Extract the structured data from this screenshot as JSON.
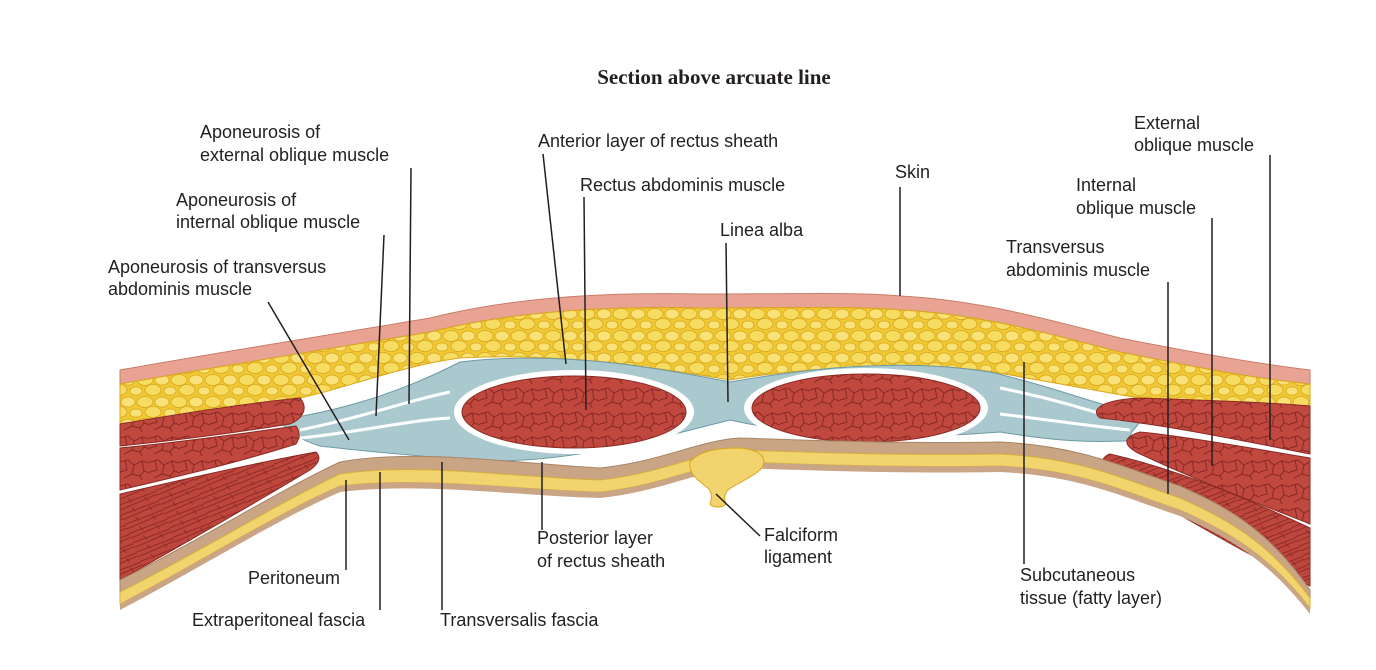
{
  "title": "Section above arcuate line",
  "labels": {
    "apo_external_1": "Aponeurosis of",
    "apo_external_2": "external oblique muscle",
    "apo_internal_1": "Aponeurosis of",
    "apo_internal_2": "internal oblique muscle",
    "apo_transversus_1": "Aponeurosis of transversus",
    "apo_transversus_2": "abdominis muscle",
    "anterior_layer": "Anterior layer of rectus sheath",
    "rectus": "Rectus abdominis muscle",
    "linea_alba": "Linea alba",
    "skin": "Skin",
    "external_oblique_1": "External",
    "external_oblique_2": "oblique muscle",
    "internal_oblique_1": "Internal",
    "internal_oblique_2": "oblique muscle",
    "transversus_1": "Transversus",
    "transversus_2": "abdominis muscle",
    "posterior_layer_1": "Posterior layer",
    "posterior_layer_2": "of rectus sheath",
    "falciform_1": "Falciform",
    "falciform_2": "ligament",
    "subcutaneous_1": "Subcutaneous",
    "subcutaneous_2": "tissue (fatty layer)",
    "peritoneum": "Peritoneum",
    "extraperitoneal": "Extraperitoneal fascia",
    "transversalis": "Transversalis fascia"
  },
  "colors": {
    "skin": "#e8a392",
    "fat": "#f3cf3e",
    "fat_cell": "#f7dc62",
    "sheath": "#a9c9cf",
    "muscle": "#c0483f",
    "muscle_line": "#8c2b26",
    "fascia": "#c9a586",
    "peritoneum": "#f2d46e"
  }
}
